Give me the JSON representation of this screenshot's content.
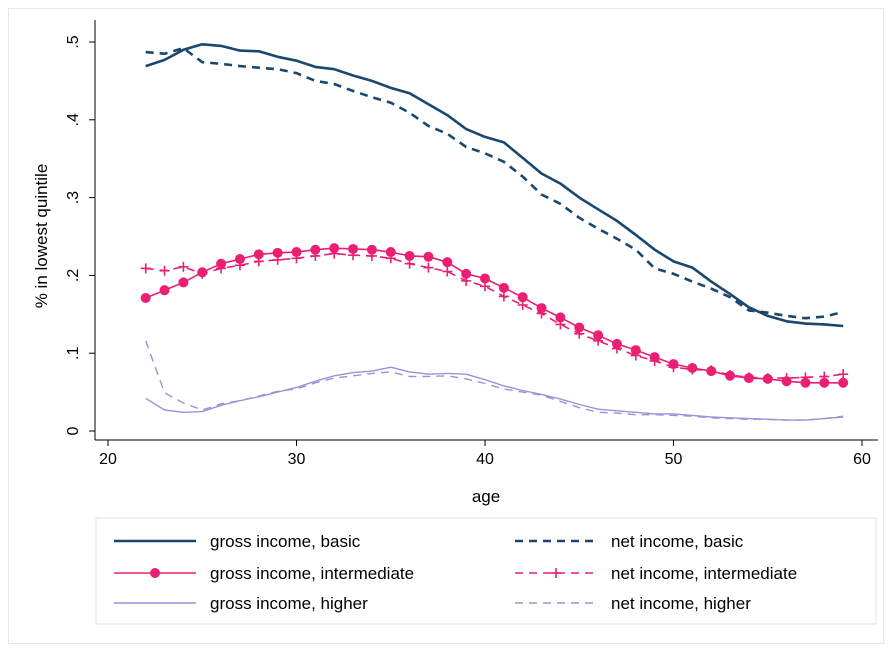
{
  "chart_data": {
    "type": "line",
    "xlabel": "age",
    "ylabel": "% in lowest quintile",
    "xlim": [
      20,
      61
    ],
    "ylim": [
      -0.01,
      0.51
    ],
    "x_ticks": [
      20,
      30,
      40,
      50,
      60
    ],
    "y_ticks": [
      0,
      0.1,
      0.2,
      0.3,
      0.4,
      0.5
    ],
    "y_tick_labels": [
      "0",
      ".1",
      ".2",
      ".3",
      ".4",
      ".5"
    ],
    "grid": false,
    "legend_position": "bottom",
    "x": [
      22,
      23,
      24,
      25,
      26,
      27,
      28,
      29,
      30,
      31,
      32,
      33,
      34,
      35,
      36,
      37,
      38,
      39,
      40,
      41,
      42,
      43,
      44,
      45,
      46,
      47,
      48,
      49,
      50,
      51,
      52,
      53,
      54,
      55,
      56,
      57,
      58,
      59
    ],
    "series": [
      {
        "name": "gross income, basic",
        "color": "#1a476f",
        "dash": "solid",
        "marker": "none",
        "width": 2.6,
        "values": [
          0.469,
          0.477,
          0.49,
          0.497,
          0.495,
          0.489,
          0.488,
          0.481,
          0.476,
          0.468,
          0.465,
          0.457,
          0.45,
          0.441,
          0.434,
          0.42,
          0.406,
          0.388,
          0.378,
          0.371,
          0.351,
          0.331,
          0.318,
          0.3,
          0.285,
          0.27,
          0.252,
          0.233,
          0.218,
          0.21,
          0.192,
          0.176,
          0.159,
          0.148,
          0.141,
          0.138,
          0.137,
          0.135
        ]
      },
      {
        "name": "net income, basic",
        "color": "#1a476f",
        "dash": "8,6",
        "marker": "none",
        "width": 2.6,
        "values": [
          0.487,
          0.485,
          0.492,
          0.474,
          0.472,
          0.469,
          0.467,
          0.465,
          0.46,
          0.45,
          0.446,
          0.437,
          0.429,
          0.422,
          0.409,
          0.392,
          0.382,
          0.365,
          0.357,
          0.346,
          0.327,
          0.304,
          0.292,
          0.274,
          0.26,
          0.247,
          0.233,
          0.209,
          0.202,
          0.192,
          0.183,
          0.172,
          0.155,
          0.152,
          0.148,
          0.145,
          0.147,
          0.153
        ]
      },
      {
        "name": "gross income, intermediate",
        "color": "#ea1f74",
        "dash": "solid",
        "marker": "circle",
        "width": 1.6,
        "values": [
          0.171,
          0.181,
          0.191,
          0.204,
          0.215,
          0.221,
          0.227,
          0.229,
          0.23,
          0.233,
          0.235,
          0.234,
          0.233,
          0.23,
          0.225,
          0.224,
          0.217,
          0.202,
          0.196,
          0.184,
          0.172,
          0.158,
          0.146,
          0.133,
          0.123,
          0.112,
          0.104,
          0.095,
          0.086,
          0.081,
          0.077,
          0.071,
          0.068,
          0.067,
          0.064,
          0.062,
          0.062,
          0.062
        ]
      },
      {
        "name": "net income, intermediate",
        "color": "#ea1f74",
        "dash": "8,6",
        "marker": "plus",
        "width": 1.6,
        "values": [
          0.209,
          0.206,
          0.211,
          0.202,
          0.209,
          0.213,
          0.218,
          0.22,
          0.222,
          0.225,
          0.228,
          0.226,
          0.225,
          0.222,
          0.215,
          0.21,
          0.205,
          0.193,
          0.186,
          0.173,
          0.162,
          0.151,
          0.137,
          0.125,
          0.116,
          0.106,
          0.097,
          0.09,
          0.082,
          0.079,
          0.078,
          0.072,
          0.069,
          0.068,
          0.068,
          0.069,
          0.07,
          0.073
        ]
      },
      {
        "name": "gross income, higher",
        "color": "#9d91d8",
        "dash": "solid",
        "marker": "none",
        "width": 1.4,
        "values": [
          0.042,
          0.027,
          0.024,
          0.025,
          0.033,
          0.039,
          0.044,
          0.05,
          0.056,
          0.064,
          0.071,
          0.075,
          0.077,
          0.082,
          0.076,
          0.073,
          0.074,
          0.073,
          0.066,
          0.058,
          0.052,
          0.047,
          0.041,
          0.034,
          0.028,
          0.026,
          0.024,
          0.022,
          0.022,
          0.02,
          0.018,
          0.017,
          0.016,
          0.015,
          0.014,
          0.014,
          0.016,
          0.018
        ]
      },
      {
        "name": "net income, higher",
        "color": "#9d91d8",
        "dash": "8,6",
        "marker": "none",
        "width": 1.4,
        "values": [
          0.116,
          0.049,
          0.036,
          0.027,
          0.035,
          0.039,
          0.045,
          0.051,
          0.054,
          0.062,
          0.068,
          0.071,
          0.074,
          0.076,
          0.07,
          0.07,
          0.071,
          0.067,
          0.061,
          0.054,
          0.05,
          0.046,
          0.038,
          0.03,
          0.024,
          0.023,
          0.021,
          0.021,
          0.02,
          0.019,
          0.017,
          0.016,
          0.015,
          0.015,
          0.014,
          0.014,
          0.016,
          0.019
        ]
      }
    ]
  }
}
